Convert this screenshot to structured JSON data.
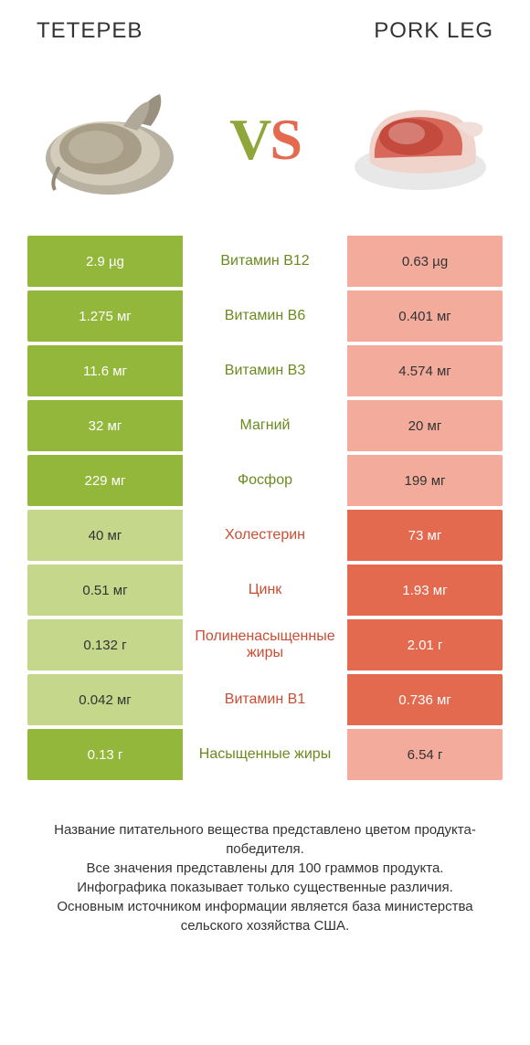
{
  "header": {
    "left": "ТЕТЕРЕВ",
    "right": "PORK LEG"
  },
  "vs": {
    "v": "V",
    "s": "S"
  },
  "colors": {
    "green": "#92b73a",
    "light_green": "#c5d78a",
    "orange": "#e36a4f",
    "light_orange": "#f3ab9b",
    "green_text": "#6a8a1f",
    "orange_text": "#c94e33",
    "background": "#ffffff"
  },
  "rows": [
    {
      "left": "2.9 µg",
      "mid": "Витамин B12",
      "right": "0.63 µg",
      "winner": "left"
    },
    {
      "left": "1.275 мг",
      "mid": "Витамин B6",
      "right": "0.401 мг",
      "winner": "left"
    },
    {
      "left": "11.6 мг",
      "mid": "Витамин B3",
      "right": "4.574 мг",
      "winner": "left"
    },
    {
      "left": "32 мг",
      "mid": "Магний",
      "right": "20 мг",
      "winner": "left"
    },
    {
      "left": "229 мг",
      "mid": "Фосфор",
      "right": "199 мг",
      "winner": "left"
    },
    {
      "left": "40 мг",
      "mid": "Холестерин",
      "right": "73 мг",
      "winner": "right"
    },
    {
      "left": "0.51 мг",
      "mid": "Цинк",
      "right": "1.93 мг",
      "winner": "right"
    },
    {
      "left": "0.132 г",
      "mid": "Полиненасыщенные жиры",
      "right": "2.01 г",
      "winner": "right"
    },
    {
      "left": "0.042 мг",
      "mid": "Витамин B1",
      "right": "0.736 мг",
      "winner": "right"
    },
    {
      "left": "0.13 г",
      "mid": "Насыщенные жиры",
      "right": "6.54 г",
      "winner": "left"
    }
  ],
  "footer": {
    "l1": "Название питательного вещества представлено цветом продукта-победителя.",
    "l2": "Все значения представлены для 100 граммов продукта.",
    "l3": "Инфографика показывает только существенные различия.",
    "l4": "Основным источником информации является база министерства сельского хозяйства США."
  }
}
